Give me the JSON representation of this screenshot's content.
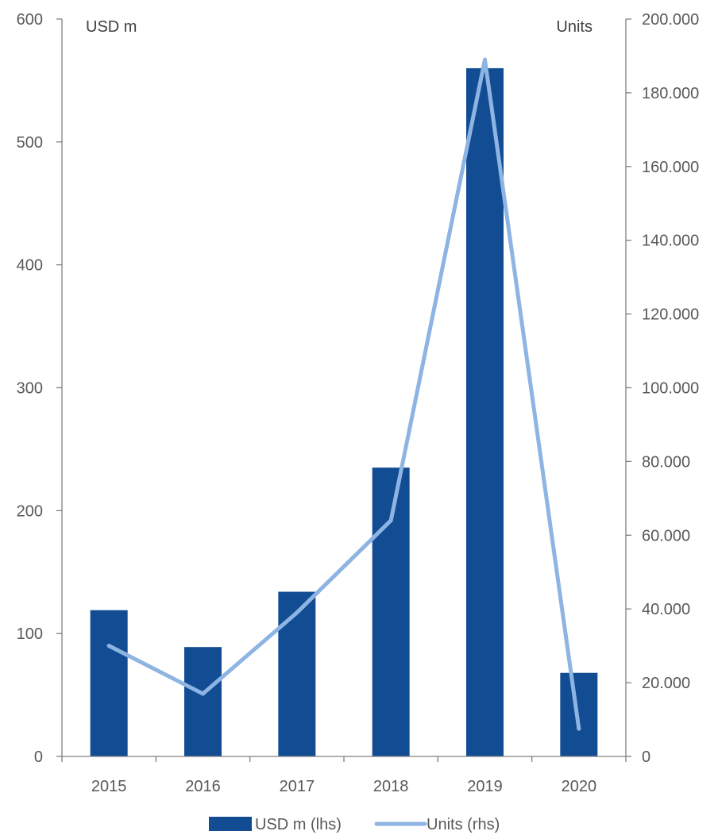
{
  "chart_data": {
    "type": "bar",
    "categories": [
      "2015",
      "2016",
      "2017",
      "2018",
      "2019",
      "2020"
    ],
    "series": [
      {
        "name": "USD m (lhs)",
        "type": "bar",
        "axis": "left",
        "color": "#124D94",
        "values": [
          119,
          89,
          134,
          235,
          560,
          68
        ]
      },
      {
        "name": "Units (rhs)",
        "type": "line",
        "axis": "right",
        "color": "#8DB4E2",
        "values": [
          30000,
          17000,
          39000,
          64000,
          189000,
          7500
        ]
      }
    ],
    "left_axis": {
      "unit_label": "USD m",
      "min": 0,
      "max": 600,
      "ticks": [
        0,
        100,
        200,
        300,
        400,
        500,
        600
      ],
      "tick_labels": [
        "0",
        "100",
        "200",
        "300",
        "400",
        "500",
        "600"
      ]
    },
    "right_axis": {
      "unit_label": "Units",
      "min": 0,
      "max": 200000,
      "ticks": [
        0,
        20000,
        40000,
        60000,
        80000,
        100000,
        120000,
        140000,
        160000,
        180000,
        200000
      ],
      "tick_labels": [
        "0",
        "20.000",
        "40.000",
        "60.000",
        "80.000",
        "100.000",
        "120.000",
        "140.000",
        "160.000",
        "180.000",
        "200.000"
      ]
    },
    "title": "",
    "grid": false,
    "legend_position": "bottom"
  }
}
